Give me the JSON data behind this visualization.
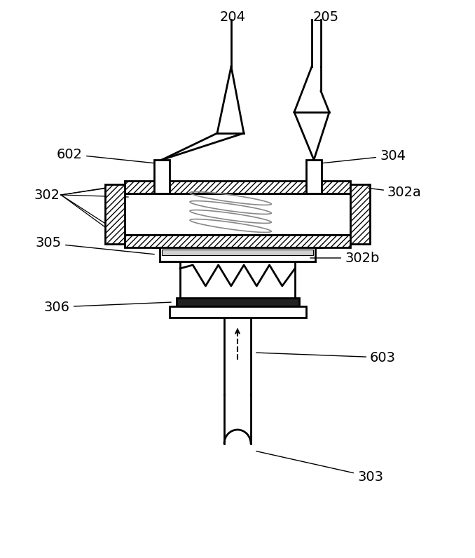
{
  "bg_color": "#ffffff",
  "line_color": "#000000",
  "figsize": [
    6.78,
    7.96
  ],
  "dpi": 100,
  "lw": 1.5,
  "lw2": 2.0
}
